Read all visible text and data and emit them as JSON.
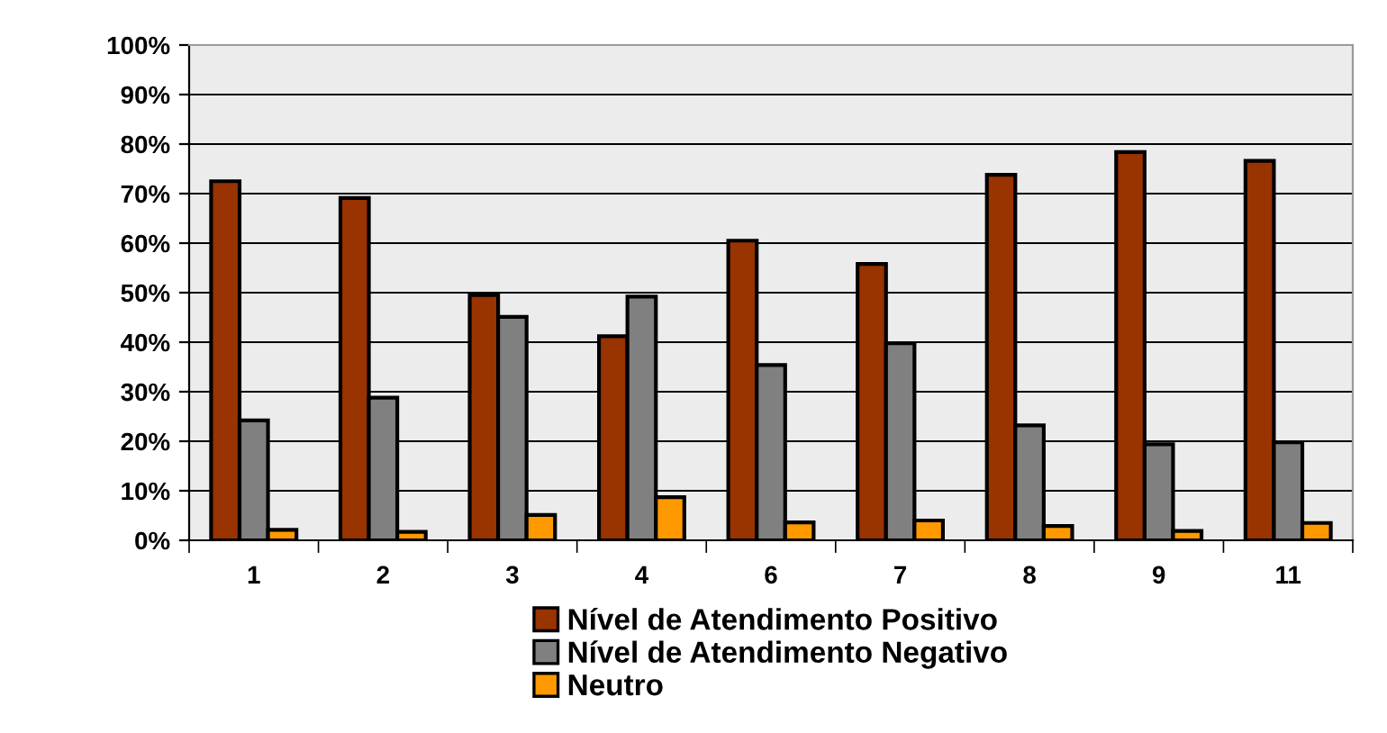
{
  "chart_data": {
    "type": "bar",
    "categories": [
      "1",
      "2",
      "3",
      "4",
      "6",
      "7",
      "8",
      "9",
      "11"
    ],
    "series": [
      {
        "name": "Nível de Atendimento Positivo",
        "color": "#993300",
        "values": [
          72.5,
          69.1,
          49.5,
          41.2,
          60.5,
          55.8,
          73.8,
          78.4,
          76.6
        ]
      },
      {
        "name": "Nível de Atendimento Negativo",
        "color": "#808080",
        "values": [
          24.2,
          28.8,
          45.1,
          49.2,
          35.4,
          39.8,
          23.2,
          19.4,
          19.8
        ]
      },
      {
        "name": "Neutro",
        "color": "#ff9900",
        "values": [
          2.1,
          1.7,
          5.1,
          8.7,
          3.6,
          4.0,
          2.9,
          1.9,
          3.5
        ]
      }
    ],
    "ylim": [
      0,
      100
    ],
    "yticks": [
      {
        "value": 0,
        "label": "0%"
      },
      {
        "value": 10,
        "label": "10%"
      },
      {
        "value": 20,
        "label": "20%"
      },
      {
        "value": 30,
        "label": "30%"
      },
      {
        "value": 40,
        "label": "40%"
      },
      {
        "value": 50,
        "label": "50%"
      },
      {
        "value": 60,
        "label": "60%"
      },
      {
        "value": 70,
        "label": "70%"
      },
      {
        "value": 80,
        "label": "80%"
      },
      {
        "value": 90,
        "label": "90%"
      },
      {
        "value": 100,
        "label": "100%"
      }
    ],
    "grid": "y",
    "legend": "bottom"
  }
}
